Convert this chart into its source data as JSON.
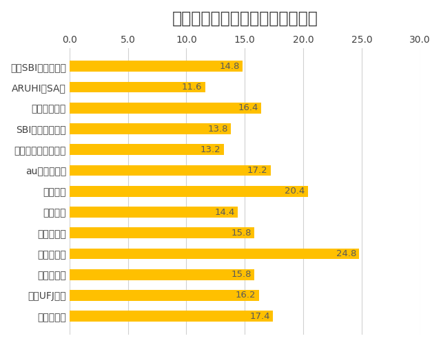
{
  "title": "使いやすそうな住宅ローンである",
  "categories": [
    "住信SBIネット銀行",
    "ARUHI（SA）",
    "三井住友銀行",
    "SBIマネープラザ",
    "ジャパンネット銀行",
    "auじぶん銀行",
    "楽天銀行",
    "新生銀行",
    "ソニー銀行",
    "イオン銀行",
    "みずほ銀行",
    "三菱UFJ銀行",
    "りそな銀行"
  ],
  "values": [
    14.8,
    11.6,
    16.4,
    13.8,
    13.2,
    17.2,
    20.4,
    14.4,
    15.8,
    24.8,
    15.8,
    16.2,
    17.4
  ],
  "bar_color": "#FFC000",
  "label_color": "#404040",
  "value_color": "#595959",
  "background_color": "#FFFFFF",
  "grid_color": "#D0D0D0",
  "xlim": [
    0,
    30
  ],
  "xticks": [
    0.0,
    5.0,
    10.0,
    15.0,
    20.0,
    25.0,
    30.0
  ],
  "title_fontsize": 17,
  "tick_fontsize": 10,
  "value_fontsize": 9.5,
  "bar_height": 0.52
}
